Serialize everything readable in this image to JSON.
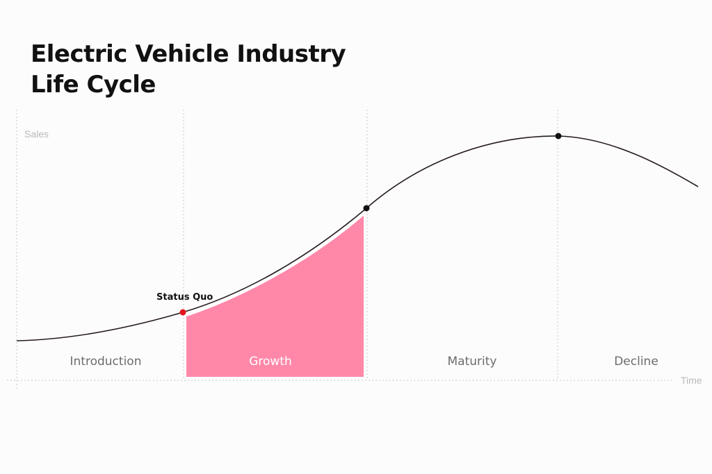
{
  "title": {
    "line1": "Electric Vehicle Industry",
    "line2": "Life Cycle"
  },
  "axes": {
    "y_label": "Sales",
    "x_label": "Time"
  },
  "phases": [
    {
      "label": "Introduction",
      "highlighted": false
    },
    {
      "label": "Growth",
      "highlighted": true
    },
    {
      "label": "Maturity",
      "highlighted": false
    },
    {
      "label": "Decline",
      "highlighted": false
    }
  ],
  "markers": {
    "status_quo": {
      "label": "Status Quo",
      "color": "#e3141c"
    },
    "growth_end": {
      "color": "#111111"
    },
    "peak": {
      "color": "#111111"
    }
  },
  "colors": {
    "highlight_fill": "#ff88a9",
    "curve": "#231a1c",
    "gridline": "#c9c9c9"
  }
}
